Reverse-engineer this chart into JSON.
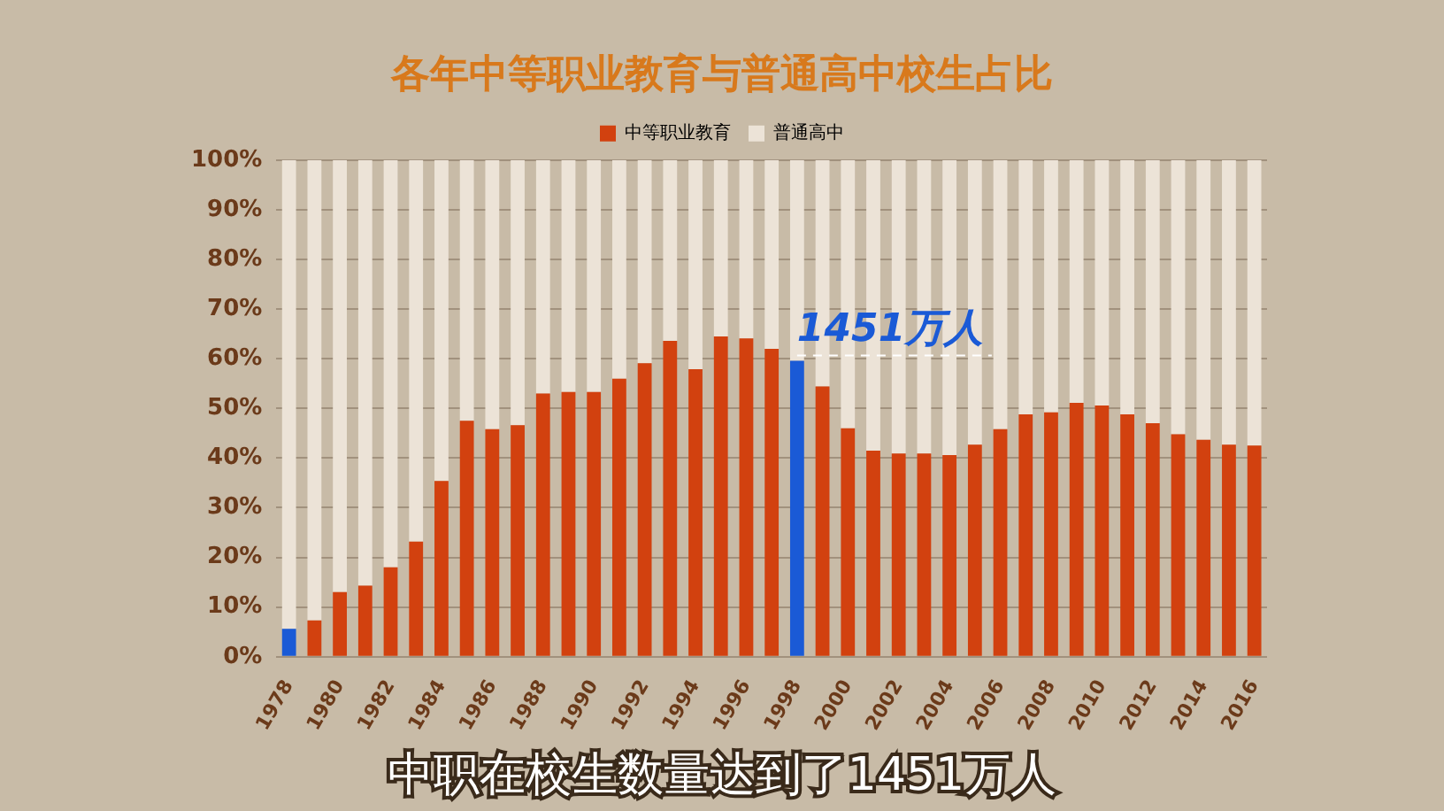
{
  "chart_data": {
    "type": "bar",
    "title": "各年中等职业教育与普通高中校生占比",
    "stacked": true,
    "legend": "top",
    "categories": [
      "1978",
      null,
      "1980",
      null,
      "1982",
      null,
      "1984",
      null,
      "1986",
      null,
      "1988",
      null,
      "1990",
      null,
      "1992",
      null,
      "1994",
      null,
      "1996",
      null,
      "1998",
      null,
      "2000",
      null,
      "2002",
      null,
      "2004",
      null,
      "2006",
      null,
      "2008",
      null,
      "2010",
      null,
      "2012",
      null,
      "2014",
      null,
      "2016"
    ],
    "series": [
      {
        "name": "中等职业教育",
        "color": "#d2410f",
        "colors": [
          "#1a5ad6",
          "#d2410f",
          "#d2410f",
          "#d2410f",
          "#d2410f",
          "#d2410f",
          "#d2410f",
          "#d2410f",
          "#d2410f",
          "#d2410f",
          "#d2410f",
          "#d2410f",
          "#d2410f",
          "#d2410f",
          "#d2410f",
          "#d2410f",
          "#d2410f",
          "#d2410f",
          "#d2410f",
          "#d2410f",
          "#1a5ad6",
          "#d2410f",
          "#d2410f",
          "#d2410f",
          "#d2410f",
          "#d2410f",
          "#d2410f",
          "#d2410f",
          "#d2410f",
          "#d2410f",
          "#d2410f",
          "#d2410f",
          "#d2410f",
          "#d2410f",
          "#d2410f",
          "#d2410f",
          "#d2410f",
          "#d2410f",
          "#d2410f"
        ],
        "values": [
          5.6,
          7.3,
          13.0,
          14.3,
          18.0,
          23.2,
          35.4,
          47.5,
          45.8,
          46.6,
          53.0,
          53.3,
          53.3,
          56.0,
          59.1,
          63.6,
          57.9,
          64.5,
          64.1,
          62.0,
          59.6,
          54.4,
          46.0,
          41.5,
          40.9,
          40.9,
          40.6,
          42.7,
          45.8,
          48.8,
          49.2,
          51.1,
          50.6,
          48.8,
          47.0,
          44.8,
          43.7,
          42.7,
          42.5
        ]
      },
      {
        "name": "普通高中",
        "color": "#ece3d7",
        "values": [
          94.4,
          92.7,
          87.0,
          85.7,
          82.0,
          76.8,
          64.6,
          52.5,
          54.2,
          53.4,
          47.0,
          46.7,
          46.7,
          44.0,
          40.9,
          36.4,
          42.1,
          35.5,
          35.9,
          38.0,
          40.4,
          45.6,
          54.0,
          58.5,
          59.1,
          59.1,
          59.4,
          57.3,
          54.2,
          51.2,
          50.8,
          48.9,
          49.4,
          51.2,
          53.0,
          55.2,
          56.3,
          57.3,
          57.5
        ]
      }
    ],
    "ylim": [
      0,
      100
    ],
    "yticks": [
      {
        "value": 0,
        "label": "0%"
      },
      {
        "value": 10,
        "label": "10%"
      },
      {
        "value": 20,
        "label": "20%"
      },
      {
        "value": 30,
        "label": "30%"
      },
      {
        "value": 40,
        "label": "40%"
      },
      {
        "value": 50,
        "label": "50%"
      },
      {
        "value": 60,
        "label": "60%"
      },
      {
        "value": 70,
        "label": "70%"
      },
      {
        "value": 80,
        "label": "80%"
      },
      {
        "value": 90,
        "label": "90%"
      },
      {
        "value": 100,
        "label": "100%"
      }
    ],
    "grid": "y",
    "annotations": [
      {
        "text": "1451万人",
        "x": "1998",
        "y": 59.6
      },
      "中职在校生数量达到了1451万人"
    ]
  }
}
